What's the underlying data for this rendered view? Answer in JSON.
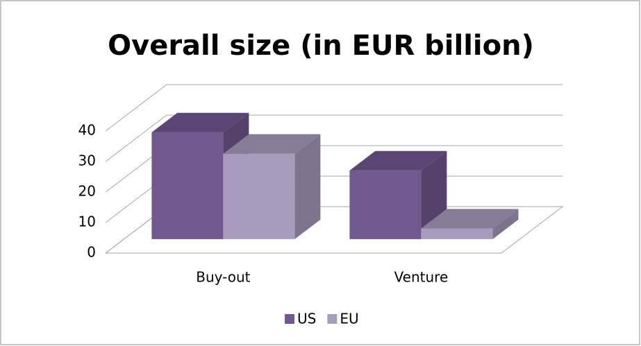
{
  "chart_data": {
    "type": "bar3d",
    "title": "Overall size (in EUR billion)",
    "categories": [
      "Buy-out",
      "Venture"
    ],
    "series": [
      {
        "name": "US",
        "color": "#71588f",
        "values": [
          35,
          22.5
        ]
      },
      {
        "name": "EU",
        "color": "#a99bbd",
        "values": [
          28,
          3.5
        ]
      }
    ],
    "ylim": [
      0,
      40
    ],
    "yticks": [
      0,
      10,
      20,
      30,
      40
    ],
    "grid": true,
    "legend": "bottom"
  }
}
